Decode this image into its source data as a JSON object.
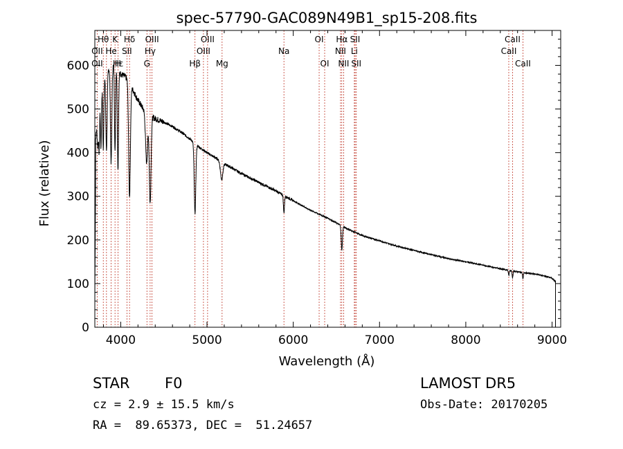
{
  "chart_data": {
    "type": "line",
    "title": "spec-57790-GAC089N49B1_sp15-208.fits",
    "xlabel": "Wavelength (Å)",
    "ylabel": "Flux (relative)",
    "xlim": [
      3700,
      9100
    ],
    "ylim": [
      0,
      680
    ],
    "x_ticks": [
      4000,
      5000,
      6000,
      7000,
      8000,
      9000
    ],
    "y_ticks": [
      0,
      100,
      200,
      300,
      400,
      500,
      600
    ],
    "grid": false,
    "line_color": "#000000",
    "marker_color": "#c0392b",
    "spectrum": {
      "continuum": [
        [
          3700,
          410
        ],
        [
          3760,
          545
        ],
        [
          3830,
          585
        ],
        [
          3900,
          600
        ],
        [
          3950,
          600
        ],
        [
          4000,
          580
        ],
        [
          4050,
          575
        ],
        [
          4100,
          560
        ],
        [
          4200,
          520
        ],
        [
          4300,
          488
        ],
        [
          4400,
          478
        ],
        [
          4500,
          470
        ],
        [
          4600,
          460
        ],
        [
          4700,
          447
        ],
        [
          4800,
          432
        ],
        [
          4900,
          414
        ],
        [
          5000,
          400
        ],
        [
          5100,
          388
        ],
        [
          5200,
          375
        ],
        [
          5400,
          352
        ],
        [
          5600,
          332
        ],
        [
          5800,
          312
        ],
        [
          6000,
          290
        ],
        [
          6200,
          268
        ],
        [
          6400,
          250
        ],
        [
          6600,
          228
        ],
        [
          6800,
          210
        ],
        [
          7000,
          198
        ],
        [
          7200,
          186
        ],
        [
          7500,
          171
        ],
        [
          7800,
          157
        ],
        [
          8000,
          150
        ],
        [
          8200,
          142
        ],
        [
          8400,
          134
        ],
        [
          8600,
          127
        ],
        [
          8800,
          122
        ],
        [
          8900,
          118
        ],
        [
          9000,
          112
        ],
        [
          9040,
          105
        ]
      ],
      "absorption": [
        [
          3734,
          70,
          6
        ],
        [
          3750,
          120,
          6
        ],
        [
          3771,
          140,
          6
        ],
        [
          3798,
          160,
          6
        ],
        [
          3835,
          180,
          8
        ],
        [
          3889,
          220,
          8
        ],
        [
          3934,
          200,
          6
        ],
        [
          3968,
          230,
          7
        ],
        [
          4102,
          260,
          10
        ],
        [
          4300,
          110,
          12
        ],
        [
          4341,
          200,
          10
        ],
        [
          4861,
          160,
          9
        ],
        [
          5170,
          40,
          14
        ],
        [
          5892,
          40,
          6
        ],
        [
          6563,
          55,
          7
        ],
        [
          8498,
          12,
          5
        ],
        [
          8542,
          15,
          5
        ],
        [
          8662,
          14,
          5
        ]
      ]
    },
    "line_markers": [
      {
        "label": "Hθ",
        "x": 3798,
        "row": 1
      },
      {
        "label": "K",
        "x": 3934,
        "row": 1
      },
      {
        "label": "Hδ",
        "x": 4102,
        "row": 1
      },
      {
        "label": "OIII",
        "x": 4363,
        "row": 1
      },
      {
        "label": "OIII",
        "x": 5007,
        "row": 1
      },
      {
        "label": "OI",
        "x": 6300,
        "row": 1
      },
      {
        "label": "Hα",
        "x": 6563,
        "row": 1
      },
      {
        "label": "SII",
        "x": 6717,
        "row": 1
      },
      {
        "label": "CaII",
        "x": 8542,
        "row": 1
      },
      {
        "label": "OII",
        "x": 3727,
        "row": 2
      },
      {
        "label": "He",
        "x": 3889,
        "row": 2
      },
      {
        "label": "SII",
        "x": 4072,
        "row": 2
      },
      {
        "label": "Hγ",
        "x": 4341,
        "row": 2
      },
      {
        "label": "OIII",
        "x": 4959,
        "row": 2
      },
      {
        "label": "Na",
        "x": 5892,
        "row": 2
      },
      {
        "label": "NII",
        "x": 6548,
        "row": 2
      },
      {
        "label": "Li",
        "x": 6708,
        "row": 2
      },
      {
        "label": "CaII",
        "x": 8498,
        "row": 2
      },
      {
        "label": "OII",
        "x": 3727,
        "row": 3
      },
      {
        "label": "Hε",
        "x": 3970,
        "row": 3
      },
      {
        "label": "H",
        "x": 3968,
        "row": 3
      },
      {
        "label": "G",
        "x": 4304,
        "row": 3
      },
      {
        "label": "Hβ",
        "x": 4861,
        "row": 3
      },
      {
        "label": "Mg",
        "x": 5175,
        "row": 3
      },
      {
        "label": "OI",
        "x": 6364,
        "row": 3
      },
      {
        "label": "NII",
        "x": 6584,
        "row": 3
      },
      {
        "label": "SII",
        "x": 6731,
        "row": 3
      },
      {
        "label": "CaII",
        "x": 8662,
        "row": 3
      }
    ],
    "marker_lines_x": [
      3727,
      3798,
      3835,
      3889,
      3934,
      3968,
      4072,
      4102,
      4304,
      4341,
      4363,
      4861,
      4959,
      5007,
      5175,
      5892,
      6300,
      6364,
      6548,
      6563,
      6584,
      6708,
      6717,
      6731,
      8498,
      8542,
      8662
    ]
  },
  "info": {
    "class_label": "STAR",
    "subclass": "F0",
    "survey": "LAMOST DR5",
    "cz": "cz = 2.9 ± 15.5 km/s",
    "obs_date": "Obs-Date: 20170205",
    "coords": "RA =  89.65373, DEC =  51.24657"
  }
}
